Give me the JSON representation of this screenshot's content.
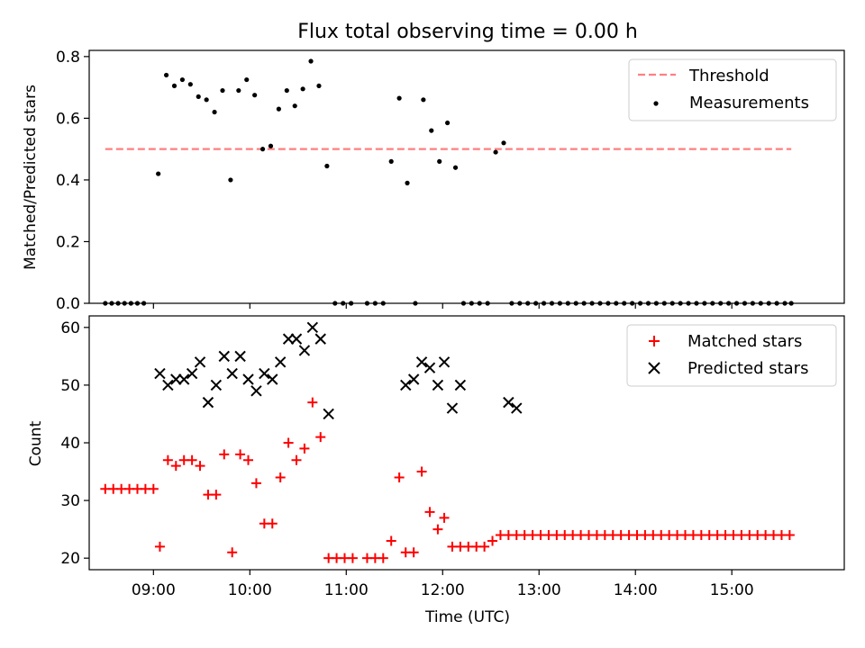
{
  "title": "Flux total observing time = 0.00 h",
  "chart_data": [
    {
      "type": "scatter",
      "ylabel": "Matched/Predicted stars",
      "xlabel": "",
      "xlim": [
        "08:20",
        "16:10"
      ],
      "ylim": [
        0,
        0.82
      ],
      "yticks": [
        0.0,
        0.2,
        0.4,
        0.6,
        0.8
      ],
      "yticklabels": [
        "0.0",
        "0.2",
        "0.4",
        "0.6",
        "0.8"
      ],
      "legend": {
        "placement": "top-right",
        "entries": [
          "Threshold",
          "Measurements"
        ]
      },
      "threshold": {
        "name": "Threshold",
        "value": 0.5,
        "x_start": "08:30",
        "x_end": "15:37",
        "color": "#ff7f7f"
      },
      "series": [
        {
          "name": "Measurements",
          "color": "#000000",
          "x": [
            "08:30",
            "08:34",
            "08:38",
            "08:42",
            "08:46",
            "08:50",
            "08:54",
            "09:03",
            "09:08",
            "09:13",
            "09:18",
            "09:23",
            "09:28",
            "09:33",
            "09:38",
            "09:43",
            "09:48",
            "09:53",
            "09:58",
            "10:03",
            "10:08",
            "10:13",
            "10:18",
            "10:23",
            "10:28",
            "10:33",
            "10:38",
            "10:43",
            "10:48",
            "10:53",
            "10:58",
            "11:03",
            "11:13",
            "11:18",
            "11:23",
            "11:28",
            "11:33",
            "11:38",
            "11:43",
            "11:48",
            "11:53",
            "11:58",
            "12:03",
            "12:08",
            "12:13",
            "12:18",
            "12:23",
            "12:28",
            "12:33",
            "12:38",
            "12:43",
            "12:48",
            "12:53",
            "12:58",
            "13:03",
            "13:08",
            "13:13",
            "13:18",
            "13:23",
            "13:28",
            "13:33",
            "13:38",
            "13:43",
            "13:48",
            "13:53",
            "13:58",
            "14:03",
            "14:08",
            "14:13",
            "14:18",
            "14:23",
            "14:28",
            "14:33",
            "14:38",
            "14:43",
            "14:48",
            "14:53",
            "14:58",
            "15:03",
            "15:08",
            "15:13",
            "15:18",
            "15:23",
            "15:28",
            "15:33",
            "15:37"
          ],
          "y": [
            0,
            0,
            0,
            0,
            0,
            0,
            0,
            0.42,
            0.74,
            0.705,
            0.725,
            0.71,
            0.67,
            0.66,
            0.62,
            0.69,
            0.4,
            0.69,
            0.725,
            0.675,
            0.5,
            0.51,
            0.63,
            0.69,
            0.64,
            0.695,
            0.785,
            0.705,
            0.445,
            0,
            0,
            0,
            0,
            0,
            0,
            0.46,
            0.665,
            0.39,
            0,
            0.66,
            0.56,
            0.46,
            0.585,
            0.44,
            0,
            0,
            0,
            0,
            0.49,
            0.52,
            0,
            0,
            0,
            0,
            0,
            0,
            0,
            0,
            0,
            0,
            0,
            0,
            0,
            0,
            0,
            0,
            0,
            0,
            0,
            0,
            0,
            0,
            0,
            0,
            0,
            0,
            0,
            0,
            0,
            0,
            0,
            0,
            0,
            0,
            0,
            0
          ]
        }
      ]
    },
    {
      "type": "scatter",
      "xlabel": "Time (UTC)",
      "ylabel": "Count",
      "xlim": [
        "08:20",
        "16:10"
      ],
      "ylim": [
        18,
        62
      ],
      "yticks": [
        20,
        30,
        40,
        50,
        60
      ],
      "yticklabels": [
        "20",
        "30",
        "40",
        "50",
        "60"
      ],
      "xticks": [
        "09:00",
        "10:00",
        "11:00",
        "12:00",
        "13:00",
        "14:00",
        "15:00"
      ],
      "legend": {
        "placement": "top-right",
        "entries": [
          "Matched stars",
          "Predicted stars"
        ]
      },
      "series": [
        {
          "name": "Matched stars",
          "marker": "+",
          "color": "#ff0000",
          "x": [
            "08:30",
            "08:35",
            "08:40",
            "08:45",
            "08:50",
            "08:55",
            "09:00",
            "09:04",
            "09:09",
            "09:14",
            "09:19",
            "09:24",
            "09:29",
            "09:34",
            "09:39",
            "09:44",
            "09:49",
            "09:54",
            "09:59",
            "10:04",
            "10:09",
            "10:14",
            "10:19",
            "10:24",
            "10:29",
            "10:34",
            "10:39",
            "10:44",
            "10:49",
            "10:54",
            "10:59",
            "11:04",
            "11:13",
            "11:18",
            "11:23",
            "11:28",
            "11:33",
            "11:37",
            "11:42",
            "11:47",
            "11:52",
            "11:57",
            "12:01",
            "12:06",
            "12:11",
            "12:16",
            "12:21",
            "12:26",
            "12:31",
            "12:36",
            "12:41",
            "12:46",
            "12:51",
            "12:56",
            "13:01",
            "13:06",
            "13:11",
            "13:16",
            "13:21",
            "13:26",
            "13:31",
            "13:36",
            "13:41",
            "13:46",
            "13:51",
            "13:56",
            "14:01",
            "14:06",
            "14:11",
            "14:16",
            "14:21",
            "14:26",
            "14:31",
            "14:36",
            "14:41",
            "14:46",
            "14:51",
            "14:56",
            "15:01",
            "15:06",
            "15:11",
            "15:16",
            "15:21",
            "15:26",
            "15:31",
            "15:36"
          ],
          "y": [
            32,
            32,
            32,
            32,
            32,
            32,
            32,
            22,
            37,
            36,
            37,
            37,
            36,
            31,
            31,
            38,
            21,
            38,
            37,
            33,
            26,
            26,
            34,
            40,
            37,
            39,
            47,
            41,
            20,
            20,
            20,
            20,
            20,
            20,
            20,
            23,
            34,
            21,
            21,
            35,
            28,
            25,
            27,
            22,
            22,
            22,
            22,
            22,
            23,
            24,
            24,
            24,
            24,
            24,
            24,
            24,
            24,
            24,
            24,
            24,
            24,
            24,
            24,
            24,
            24,
            24,
            24,
            24,
            24,
            24,
            24,
            24,
            24,
            24,
            24,
            24,
            24,
            24,
            24,
            24,
            24,
            24,
            24,
            24,
            24,
            24
          ]
        },
        {
          "name": "Predicted stars",
          "marker": "x",
          "color": "#000000",
          "x": [
            "09:04",
            "09:09",
            "09:14",
            "09:19",
            "09:24",
            "09:29",
            "09:34",
            "09:39",
            "09:44",
            "09:49",
            "09:54",
            "09:59",
            "10:04",
            "10:09",
            "10:14",
            "10:19",
            "10:24",
            "10:29",
            "10:34",
            "10:39",
            "10:44",
            "10:49",
            "11:37",
            "11:42",
            "11:47",
            "11:52",
            "11:57",
            "12:01",
            "12:06",
            "12:11",
            "12:41",
            "12:46"
          ],
          "y": [
            52,
            50,
            51,
            51,
            52,
            54,
            47,
            50,
            55,
            52,
            55,
            51,
            49,
            52,
            51,
            54,
            58,
            58,
            56,
            60,
            58,
            45,
            50,
            51,
            54,
            53,
            50,
            54,
            46,
            50,
            47,
            46
          ]
        }
      ]
    }
  ]
}
